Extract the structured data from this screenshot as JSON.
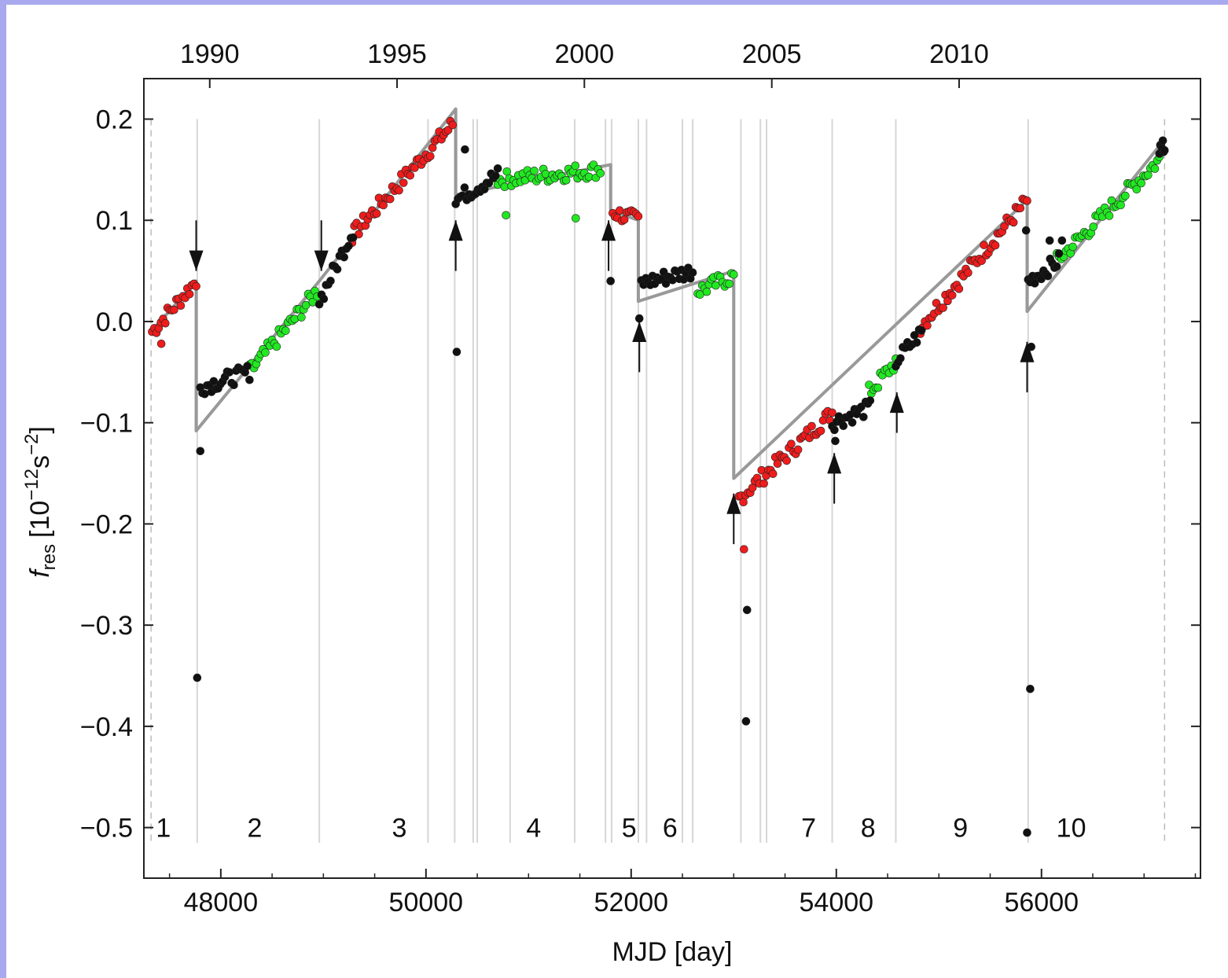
{
  "chart_data": {
    "type": "scatter",
    "xlabel": "MJD [day]",
    "ylabel_main": "f",
    "ylabel_sub": "res",
    "ylabel_unit": "[10",
    "ylabel_exp": "−12",
    "ylabel_unit2": "s",
    "ylabel_exp2": "−2",
    "ylabel_close": "]",
    "xlim": [
      47250,
      57550
    ],
    "ylim": [
      -0.55,
      0.24
    ],
    "x_ticks": [
      48000,
      50000,
      52000,
      54000,
      56000
    ],
    "x_tick_labels": [
      "48000",
      "50000",
      "52000",
      "54000",
      "56000"
    ],
    "y_ticks": [
      0.2,
      0.1,
      0.0,
      -0.1,
      -0.2,
      -0.3,
      -0.4,
      -0.5
    ],
    "y_tick_labels": [
      "0.2",
      "0.1",
      "0.0",
      "−0.1",
      "−0.2",
      "−0.3",
      "−0.4",
      "−0.5"
    ],
    "top_axis": [
      {
        "label": "1990",
        "mjd": 47892
      },
      {
        "label": "1995",
        "mjd": 49718
      },
      {
        "label": "2000",
        "mjd": 51544
      },
      {
        "label": "2005",
        "mjd": 53371
      },
      {
        "label": "2010",
        "mjd": 55197
      }
    ],
    "colors": {
      "red": "#ee1c1c",
      "green": "#22e822",
      "black": "#111111",
      "model": "#999999",
      "grid": "#d6d6d6"
    },
    "boundaries_dashed": [
      47320,
      57200
    ],
    "boundaries": [
      47770,
      48960,
      50020,
      50280,
      50460,
      50500,
      50820,
      51450,
      51750,
      51810,
      52070,
      52150,
      52500,
      52600,
      53070,
      53260,
      53320,
      53960,
      54580,
      55870
    ],
    "segment_labels": [
      {
        "label": "1",
        "x": 47440
      },
      {
        "label": "2",
        "x": 48330
      },
      {
        "label": "3",
        "x": 49740
      },
      {
        "label": "4",
        "x": 51050
      },
      {
        "label": "5",
        "x": 51980
      },
      {
        "label": "6",
        "x": 52380
      },
      {
        "label": "7",
        "x": 53730
      },
      {
        "label": "8",
        "x": 54310
      },
      {
        "label": "9",
        "x": 55210
      },
      {
        "label": "10",
        "x": 56290
      }
    ],
    "arrows": [
      {
        "x": 47760,
        "y_from": 0.1,
        "y_to": 0.05,
        "dir": "down"
      },
      {
        "x": 48980,
        "y_from": 0.1,
        "y_to": 0.05,
        "dir": "down"
      },
      {
        "x": 50290,
        "y_from": 0.05,
        "y_to": 0.1,
        "dir": "up"
      },
      {
        "x": 51780,
        "y_from": 0.05,
        "y_to": 0.1,
        "dir": "up"
      },
      {
        "x": 52080,
        "y_from": -0.05,
        "y_to": 0.0,
        "dir": "up"
      },
      {
        "x": 53000,
        "y_from": -0.22,
        "y_to": -0.17,
        "dir": "up"
      },
      {
        "x": 53980,
        "y_from": -0.18,
        "y_to": -0.13,
        "dir": "up"
      },
      {
        "x": 54590,
        "y_from": -0.11,
        "y_to": -0.07,
        "dir": "up"
      },
      {
        "x": 55860,
        "y_from": -0.07,
        "y_to": -0.02,
        "dir": "up"
      }
    ],
    "model": [
      [
        47320,
        -0.01
      ],
      [
        47760,
        0.04
      ],
      [
        47760,
        -0.108
      ],
      [
        48960,
        0.04
      ],
      [
        50290,
        0.21
      ],
      [
        50290,
        0.125
      ],
      [
        51800,
        0.155
      ],
      [
        51800,
        0.11
      ],
      [
        52070,
        0.1
      ],
      [
        52070,
        0.02
      ],
      [
        53000,
        0.05
      ],
      [
        53000,
        -0.155
      ],
      [
        55860,
        0.12
      ],
      [
        55860,
        0.01
      ],
      [
        57200,
        0.18
      ]
    ],
    "series": [
      {
        "name": "",
        "color": "red",
        "segments": [
          [
            47330,
            47760,
            -0.01,
            0.04
          ],
          [
            49280,
            50260,
            0.085,
            0.195
          ],
          [
            51820,
            52070,
            0.108,
            0.1
          ],
          [
            53050,
            53960,
            -0.175,
            -0.09
          ],
          [
            54820,
            55860,
            -0.005,
            0.12
          ]
        ],
        "outliers": [
          [
            47420,
            -0.022
          ],
          [
            53100,
            -0.225
          ]
        ]
      },
      {
        "name": "",
        "color": "green",
        "segments": [
          [
            48280,
            48940,
            -0.05,
            0.03
          ],
          [
            50700,
            51700,
            0.14,
            0.15
          ],
          [
            52650,
            53000,
            0.03,
            0.045
          ],
          [
            54320,
            54580,
            -0.07,
            -0.04
          ],
          [
            56150,
            57150,
            0.06,
            0.16
          ]
        ],
        "outliers": [
          [
            50780,
            0.105
          ],
          [
            51460,
            0.102
          ]
        ]
      },
      {
        "name": "",
        "color": "black",
        "segments": [
          [
            47800,
            48280,
            -0.065,
            -0.05
          ],
          [
            48960,
            49290,
            0.02,
            0.09
          ],
          [
            50290,
            50700,
            0.12,
            0.145
          ],
          [
            52100,
            52600,
            0.038,
            0.05
          ],
          [
            53960,
            54330,
            -0.1,
            -0.085
          ],
          [
            54580,
            54830,
            -0.04,
            -0.01
          ],
          [
            55870,
            56170,
            0.04,
            0.06
          ],
          [
            57150,
            57200,
            0.17,
            0.175
          ]
        ],
        "outliers": [
          [
            47800,
            -0.128
          ],
          [
            47770,
            -0.352
          ],
          [
            50300,
            -0.03
          ],
          [
            50380,
            0.17
          ],
          [
            51800,
            0.04
          ],
          [
            52080,
            0.003
          ],
          [
            53130,
            -0.285
          ],
          [
            53120,
            -0.395
          ],
          [
            53990,
            -0.118
          ],
          [
            55860,
            -0.505
          ],
          [
            55890,
            -0.363
          ],
          [
            55900,
            -0.025
          ],
          [
            55850,
            0.09
          ],
          [
            56080,
            0.08
          ],
          [
            56200,
            0.08
          ]
        ]
      }
    ]
  }
}
